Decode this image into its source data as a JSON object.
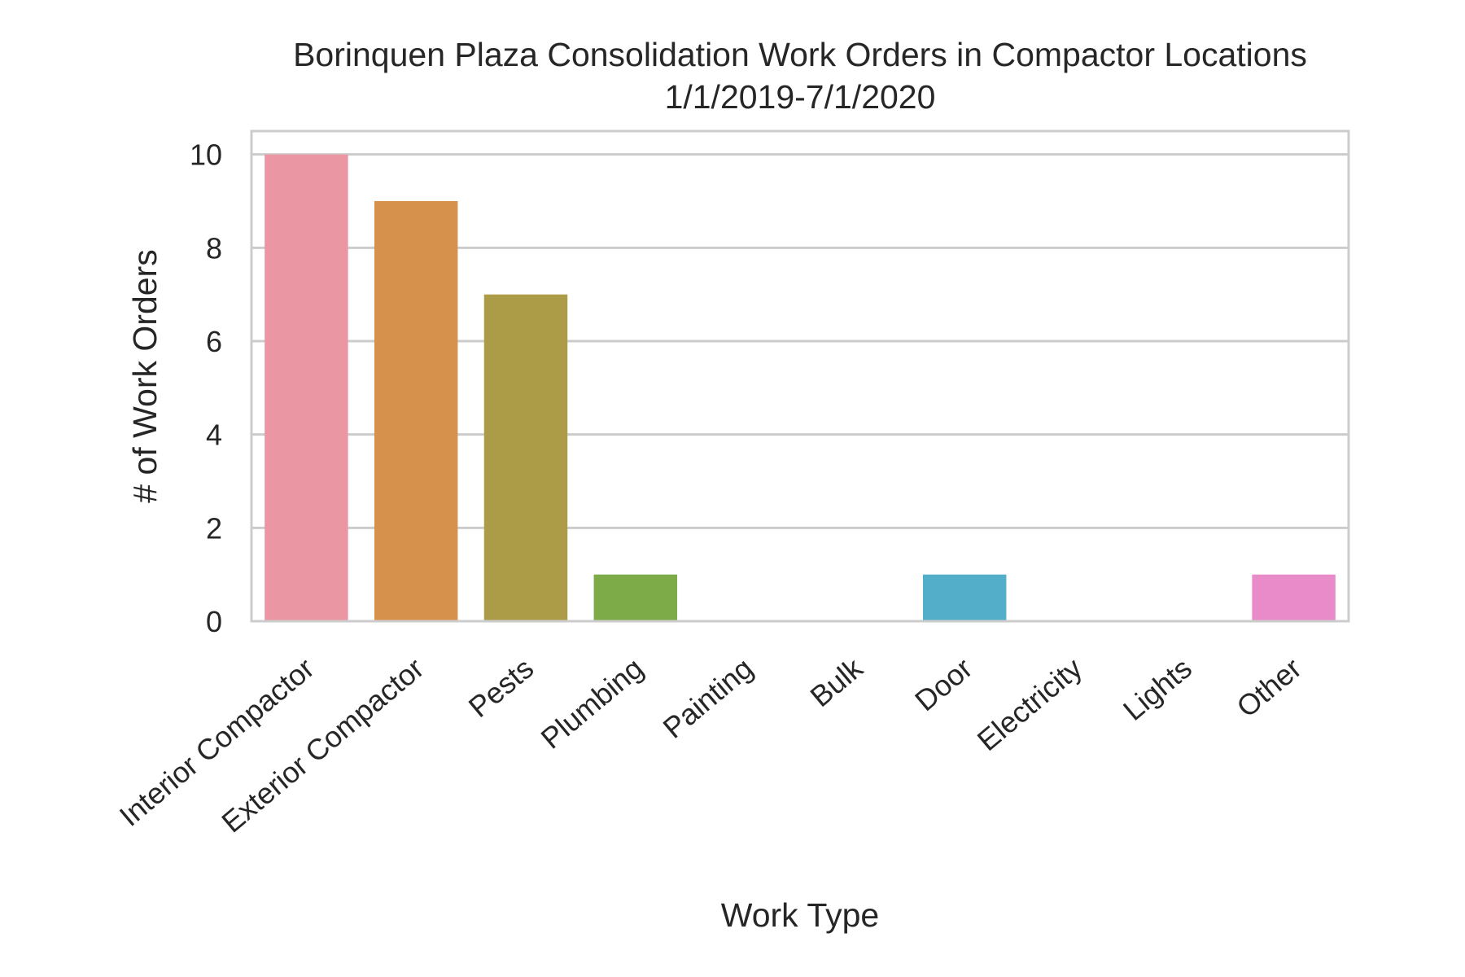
{
  "chart_data": {
    "type": "bar",
    "title": "Borinquen Plaza Consolidation Work Orders in Compactor Locations",
    "subtitle": "1/1/2019-7/1/2020",
    "xlabel": "Work Type",
    "ylabel": "# of Work Orders",
    "categories": [
      "Interior Compactor",
      "Exterior Compactor",
      "Pests",
      "Plumbing",
      "Painting",
      "Bulk",
      "Door",
      "Electricity",
      "Lights",
      "Other"
    ],
    "values": [
      10,
      9,
      7,
      1,
      0,
      0,
      1,
      0,
      0,
      1
    ],
    "colors": [
      "#ea96a3",
      "#d6924d",
      "#ad9c47",
      "#7dab48",
      "#4fb06a",
      "#50ac9b",
      "#52aec9",
      "#8ea5e8",
      "#d58fe5",
      "#e88bc8"
    ],
    "yticks": [
      0,
      2,
      4,
      6,
      8,
      10
    ],
    "ylim": [
      0,
      10.5
    ],
    "grid": true,
    "legend": "none"
  }
}
